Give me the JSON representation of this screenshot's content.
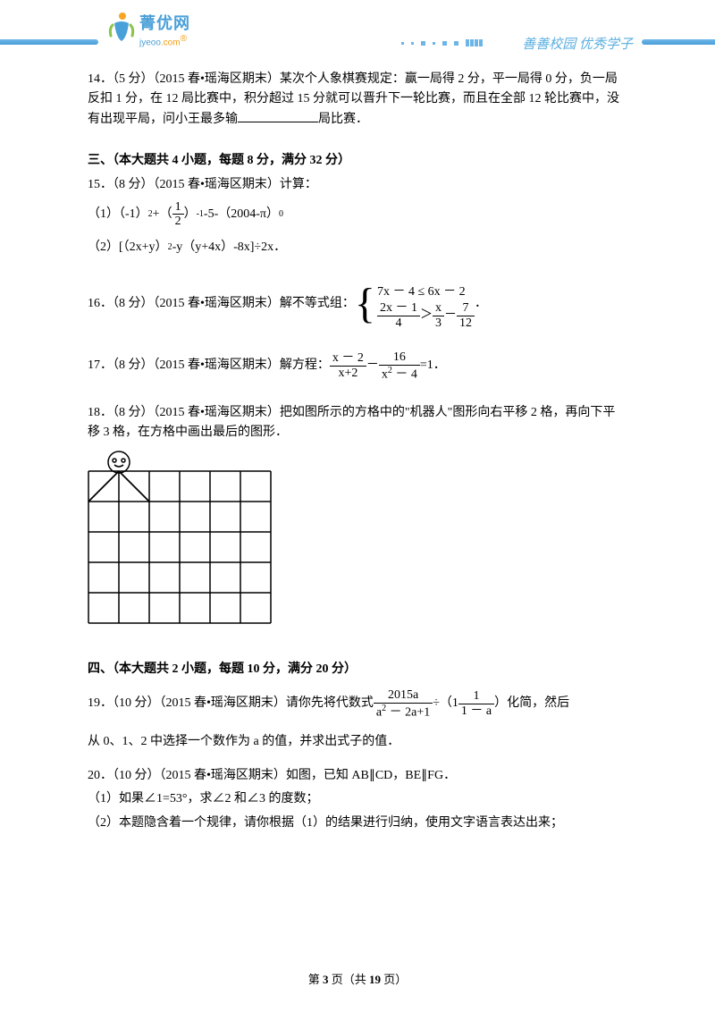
{
  "header": {
    "logo_cn": "菁优网",
    "logo_en_1": "jyeoo",
    "logo_en_2": ".com",
    "slogan": "善善校园 优秀学子"
  },
  "q14": {
    "prefix": "14．（5 分）（2015 春•瑶海区期末）某次个人象棋赛规定：赢一局得 2 分，平一局得 0 分，负一局反扣 1 分，在 12 局比赛中，积分超过 15 分就可以晋升下一轮比赛，而且在全部 12 轮比赛中，没有出现平局，问小王最多输",
    "suffix": "局比赛．"
  },
  "section3": {
    "title": "三、（本大题共 4 小题，每题 8 分，满分 32 分）"
  },
  "q15": {
    "head": "15．（8 分）（2015 春•瑶海区期末）计算：",
    "p1a": "（1）（-1）",
    "p1b": "+（",
    "frac1_num": "1",
    "frac1_den": "2",
    "p1c": "）",
    "p1d": "-5-（2004-π）",
    "p2": "（2）[（2x+y）",
    "p2b": "-y（y+4x）-8x]÷2x．"
  },
  "q16": {
    "head": "16．（8 分）（2015 春•瑶海区期末）解不等式组：",
    "row1": "7x － 4 ≤ 6x － 2",
    "r2_f1n": "2x － 1",
    "r2_f1d": "4",
    "r2_gt": "＞",
    "r2_f2n": "x",
    "r2_f2d": "3",
    "r2_minus": " － ",
    "r2_f3n": "7",
    "r2_f3d": "12",
    "tail": "．"
  },
  "q17": {
    "head": "17．（8 分）（2015 春•瑶海区期末）解方程：",
    "f1n": "x － 2",
    "f1d": "x+2",
    "minus": " － ",
    "f2n": "16",
    "f2d": "x",
    "f2d2": " － 4",
    "eq": "=1．"
  },
  "q18": {
    "text": "18．（8 分）（2015 春•瑶海区期末）把如图所示的方格中的\"机器人\"图形向右平移 2 格，再向下平移 3 格，在方格中画出最后的图形．"
  },
  "section4": {
    "title": "四、（本大题共 2 小题，每题 10 分，满分 20 分）"
  },
  "q19": {
    "head": "19．（10 分）（2015 春•瑶海区期末）请你先将代数式 ",
    "f1n": "2015a",
    "f1d_a": "a",
    "f1d_b": " － 2a+1",
    "div": " ÷（1",
    "f2n": "1",
    "f2d": "1 － a",
    "tail1": "）化简，然后",
    "line2": "从 0、1、2 中选择一个数作为 a 的值，并求出式子的值．"
  },
  "q20": {
    "head": "20．（10 分）（2015 春•瑶海区期末）如图，已知 AB∥CD，BE∥FG．",
    "p1": "（1）如果∠1=53°，求∠2 和∠3 的度数；",
    "p2": "（2）本题隐含着一个规律，请你根据（1）的结果进行归纳，使用文字语言表达出来；"
  },
  "footer": {
    "pre": "第 ",
    "cur": "3",
    "mid": " 页（共 ",
    "total": "19",
    "post": " 页）"
  },
  "grid": {
    "cols": 6,
    "rows": 5,
    "cell": 34,
    "stroke": "#000000"
  }
}
